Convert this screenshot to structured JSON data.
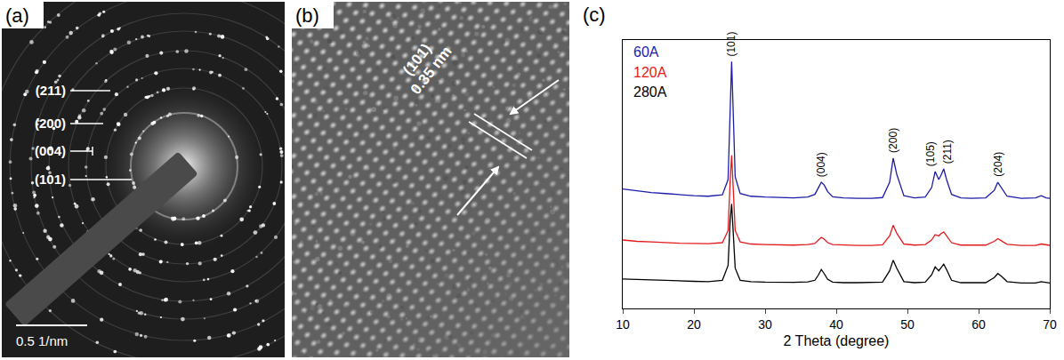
{
  "figure": {
    "panel_a": {
      "label": "(a)",
      "ring_labels": [
        "(211)",
        "(200)",
        "(004)",
        "(101)"
      ],
      "scale_bar": "0.5 1/nm"
    },
    "panel_b": {
      "label": "(b)",
      "plane": "(101)",
      "spacing": "0.35 nm"
    },
    "panel_c": {
      "label": "(c)"
    }
  },
  "chart_data": {
    "type": "line",
    "xlabel": "2 Theta (degree)",
    "xlim": [
      10,
      70
    ],
    "xticks": [
      10,
      20,
      30,
      40,
      50,
      60,
      70
    ],
    "ylim": [
      0,
      100
    ],
    "tick_labels": "x",
    "grid": false,
    "legend": "upper left",
    "x": [
      10,
      12,
      14,
      16,
      18,
      20,
      22,
      24,
      24.8,
      25.1,
      25.3,
      25.5,
      25.8,
      26.5,
      28,
      30,
      32,
      34,
      36,
      37,
      37.5,
      37.9,
      38.3,
      38.8,
      39.5,
      41,
      43,
      45,
      46.5,
      47.5,
      48.0,
      48.5,
      49.5,
      51,
      52.5,
      53.4,
      53.9,
      54.4,
      54.7,
      55.1,
      55.5,
      56.2,
      57.5,
      59,
      61,
      62.2,
      62.7,
      63.2,
      64,
      66,
      68,
      68.8,
      69.5,
      70
    ],
    "series": [
      {
        "name": "60A",
        "color": "#1c1ca8",
        "values": [
          44.5,
          43.8,
          43.2,
          42.8,
          42.3,
          42.0,
          41.8,
          42.3,
          48,
          80,
          92,
          75,
          49,
          42.8,
          41.8,
          41.5,
          41.3,
          41.2,
          41.5,
          42.5,
          45,
          47,
          46,
          43.5,
          41.6,
          41.2,
          41,
          41,
          41.3,
          47,
          56,
          50,
          42,
          41.2,
          41.5,
          45,
          51,
          48,
          49.5,
          52,
          48,
          42.5,
          41.2,
          41,
          41.2,
          44,
          47,
          45,
          41.8,
          41,
          41.2,
          42,
          41.2,
          41
        ]
      },
      {
        "name": "120A",
        "color": "#e3191c",
        "values": [
          25.5,
          25,
          24.8,
          24.5,
          24.3,
          24.2,
          24.1,
          24.5,
          29,
          48,
          57,
          46,
          29,
          24.8,
          24,
          23.8,
          23.7,
          23.6,
          23.8,
          24.2,
          25.5,
          26.5,
          25.8,
          24.5,
          23.8,
          23.6,
          23.5,
          23.5,
          23.7,
          27,
          31,
          28,
          24,
          23.6,
          23.8,
          25.5,
          27.5,
          27,
          27.8,
          28.5,
          27,
          24.5,
          23.6,
          23.5,
          23.6,
          25,
          26,
          25.2,
          23.9,
          23.5,
          23.5,
          24,
          23.6,
          23.5
        ]
      },
      {
        "name": "280A",
        "color": "#000000",
        "values": [
          11,
          10.8,
          10.5,
          10.3,
          10.2,
          10.1,
          10,
          10.5,
          16,
          33,
          39,
          30,
          15,
          10.5,
          10,
          9.8,
          9.7,
          9.7,
          9.9,
          10.5,
          12.5,
          14.5,
          13,
          10.8,
          9.8,
          9.6,
          9.6,
          9.6,
          9.8,
          14,
          18,
          15,
          10,
          9.6,
          9.8,
          12.5,
          15.5,
          14,
          15,
          16.5,
          14.5,
          10.5,
          9.6,
          9.5,
          9.6,
          11.5,
          13,
          12,
          10,
          9.5,
          9.5,
          10,
          9.6,
          9.5
        ]
      }
    ],
    "annotations": [
      {
        "text": "(101)",
        "x": 25.3
      },
      {
        "text": "(004)",
        "x": 37.9
      },
      {
        "text": "(200)",
        "x": 48.0
      },
      {
        "text": "(105)",
        "x": 53.9
      },
      {
        "text": "(211)",
        "x": 55.1
      },
      {
        "text": "(204)",
        "x": 62.7
      }
    ]
  }
}
